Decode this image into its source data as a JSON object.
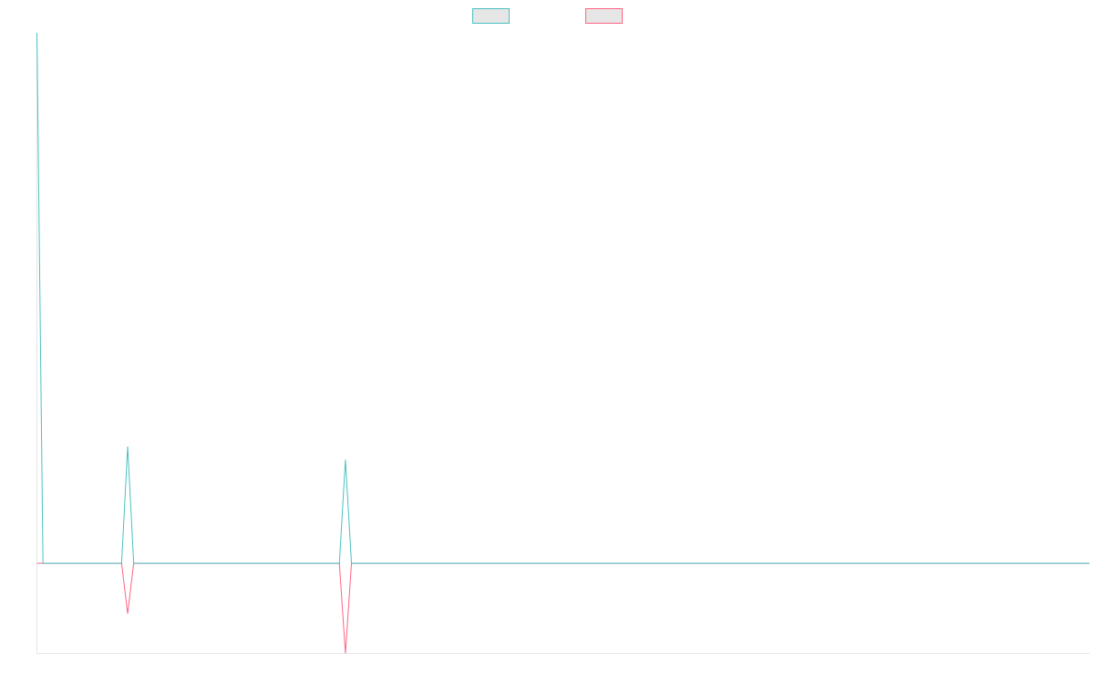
{
  "chart_data": {
    "type": "line",
    "title": "",
    "xlabel": "",
    "ylabel": "",
    "grid": false,
    "legend_position": "top-center",
    "x_count": 175,
    "ylim": [
      -0.17,
      1.0
    ],
    "series": [
      {
        "name": "",
        "color": "#4bc0c0",
        "legend_fill": "#e6e6e6",
        "baseline": 0,
        "points": [
          {
            "i": 0,
            "v": 1.0
          },
          {
            "i": 1,
            "v": 0
          },
          {
            "i": 14,
            "v": 0
          },
          {
            "i": 15,
            "v": 0.22
          },
          {
            "i": 16,
            "v": 0
          },
          {
            "i": 50,
            "v": 0
          },
          {
            "i": 51,
            "v": 0.195
          },
          {
            "i": 52,
            "v": 0
          },
          {
            "i": 174,
            "v": 0
          }
        ]
      },
      {
        "name": "",
        "color": "#ff6384",
        "legend_fill": "#e6e6e6",
        "baseline": 0,
        "points": [
          {
            "i": 0,
            "v": 0
          },
          {
            "i": 14,
            "v": 0
          },
          {
            "i": 15,
            "v": -0.095
          },
          {
            "i": 16,
            "v": 0
          },
          {
            "i": 50,
            "v": 0
          },
          {
            "i": 51,
            "v": -0.17
          },
          {
            "i": 52,
            "v": 0
          },
          {
            "i": 174,
            "v": 0
          }
        ]
      }
    ]
  }
}
